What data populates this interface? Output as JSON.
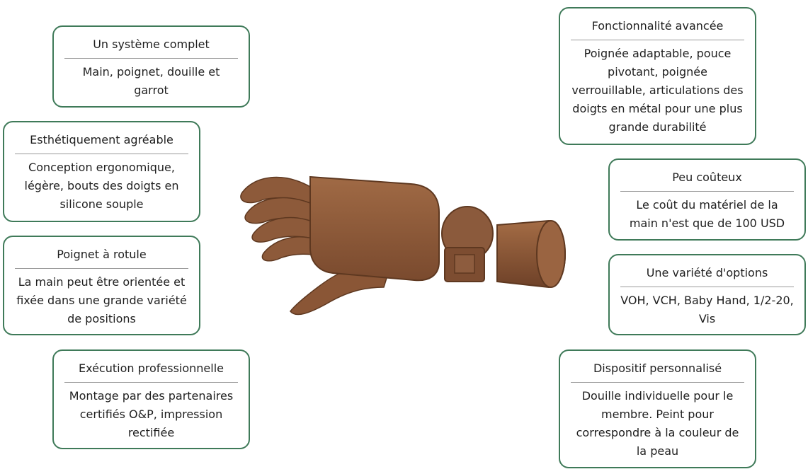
{
  "features": [
    {
      "id": "complete-system",
      "title": "Un système complet",
      "text": "Main, poignet, douille et garrot"
    },
    {
      "id": "aesthetic",
      "title": "Esthétiquement agréable",
      "text": "Conception ergonomique, légère, bouts des doigts en silicone souple"
    },
    {
      "id": "ball-wrist",
      "title": "Poignet à rotule",
      "text": "La main peut être orientée et fixée dans une grande variété de positions"
    },
    {
      "id": "professional",
      "title": "Exécution professionnelle",
      "text": "Montage par des partenaires certifiés O&P, impression rectifiée"
    },
    {
      "id": "advanced",
      "title": "Fonctionnalité avancée",
      "text": "Poignée adaptable, pouce pivotant, poignée verrouillable, articulations des doigts en métal pour une plus grande durabilité"
    },
    {
      "id": "low-cost",
      "title": "Peu coûteux",
      "text": "Le coût du matériel de la main n'est que de 100 USD"
    },
    {
      "id": "options",
      "title": "Une variété d'options",
      "text": "VOH, VCH, Baby Hand, 1/2-20, Vis"
    },
    {
      "id": "custom",
      "title": "Dispositif personnalisé",
      "text": "Douille individuelle pour le membre. Peint pour correspondre à la couleur de la peau"
    }
  ],
  "colors": {
    "card_border": "#3f7a59",
    "hand": "#8b5a3c"
  },
  "image": {
    "icon": "prosthetic-hand-illustration"
  }
}
